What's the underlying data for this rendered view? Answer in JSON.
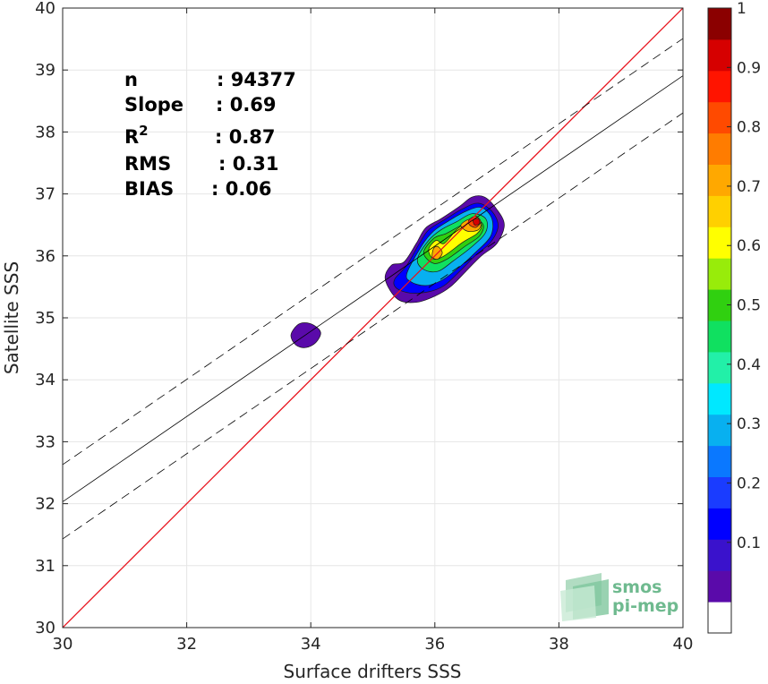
{
  "chart_data": {
    "type": "heatmap",
    "title": "",
    "xlabel": "Surface drifters SSS",
    "ylabel": "Satellite SSS",
    "xlim": [
      30,
      40
    ],
    "ylim": [
      30,
      40
    ],
    "xticks": [
      30,
      32,
      34,
      36,
      38,
      40
    ],
    "yticks": [
      30,
      31,
      32,
      33,
      34,
      35,
      36,
      37,
      38,
      39,
      40
    ],
    "grid": true,
    "colorbar": {
      "ticks": [
        "0.1",
        "0.2",
        "0.3",
        "0.4",
        "0.5",
        "0.6",
        "0.7",
        "0.8",
        "0.9",
        "1"
      ],
      "colors": [
        "#ffffff",
        "#5a0aaa",
        "#3a12cc",
        "#0000ff",
        "#1a3cff",
        "#0a78ff",
        "#08b0f0",
        "#00e8ff",
        "#22f0a8",
        "#10e060",
        "#30d010",
        "#98ec0a",
        "#ffff00",
        "#ffd000",
        "#ffa800",
        "#ff7c00",
        "#ff4a00",
        "#ff1400",
        "#d60000",
        "#8b0000"
      ]
    },
    "stats": [
      {
        "label": "n",
        "value": ": 94377"
      },
      {
        "label": "Slope",
        "value": ": 0.69"
      },
      {
        "label": "R",
        "sup": "2",
        "value": ": 0.87"
      },
      {
        "label": "RMS",
        "value": ": 0.31"
      },
      {
        "label": "BIAS",
        "value": ": 0.06"
      }
    ],
    "identity_line": {
      "color": "#e8141e",
      "slope": 1,
      "intercept": 0
    },
    "fit_line": {
      "slope": 0.6877,
      "intercept": 11.4,
      "band_offsets": [
        0.6,
        -0.6
      ]
    },
    "density_contours": [
      {
        "level": 0.05,
        "points": [
          [
            33.78,
            34.88
          ],
          [
            33.9,
            34.92
          ],
          [
            34.05,
            34.88
          ],
          [
            34.16,
            34.76
          ],
          [
            34.08,
            34.6
          ],
          [
            33.92,
            34.52
          ],
          [
            33.76,
            34.56
          ],
          [
            33.68,
            34.72
          ]
        ]
      },
      {
        "level": 0.05,
        "points": [
          [
            35.2,
            35.62
          ],
          [
            35.3,
            35.85
          ],
          [
            35.5,
            35.9
          ],
          [
            35.7,
            36.2
          ],
          [
            35.85,
            36.45
          ],
          [
            36.1,
            36.6
          ],
          [
            36.4,
            36.8
          ],
          [
            36.6,
            36.95
          ],
          [
            36.8,
            36.95
          ],
          [
            37,
            36.75
          ],
          [
            37.12,
            36.5
          ],
          [
            37.0,
            36.2
          ],
          [
            36.75,
            36.0
          ],
          [
            36.5,
            35.75
          ],
          [
            36.25,
            35.5
          ],
          [
            36.0,
            35.35
          ],
          [
            35.7,
            35.25
          ],
          [
            35.4,
            35.3
          ]
        ]
      },
      {
        "level": 0.15,
        "points": [
          [
            35.35,
            35.62
          ],
          [
            35.55,
            35.85
          ],
          [
            35.75,
            36.2
          ],
          [
            35.9,
            36.42
          ],
          [
            36.15,
            36.58
          ],
          [
            36.45,
            36.76
          ],
          [
            36.7,
            36.85
          ],
          [
            36.92,
            36.72
          ],
          [
            37.02,
            36.48
          ],
          [
            36.9,
            36.22
          ],
          [
            36.65,
            36.0
          ],
          [
            36.4,
            35.75
          ],
          [
            36.15,
            35.52
          ],
          [
            35.9,
            35.42
          ],
          [
            35.6,
            35.4
          ],
          [
            35.38,
            35.48
          ]
        ]
      },
      {
        "level": 0.3,
        "points": [
          [
            35.55,
            35.72
          ],
          [
            35.8,
            36.18
          ],
          [
            35.98,
            36.4
          ],
          [
            36.2,
            36.55
          ],
          [
            36.5,
            36.72
          ],
          [
            36.75,
            36.78
          ],
          [
            36.92,
            36.6
          ],
          [
            36.9,
            36.32
          ],
          [
            36.65,
            36.05
          ],
          [
            36.35,
            35.78
          ],
          [
            36.1,
            35.6
          ],
          [
            35.85,
            35.52
          ],
          [
            35.62,
            35.58
          ]
        ]
      },
      {
        "level": 0.45,
        "points": [
          [
            35.72,
            35.95
          ],
          [
            35.9,
            36.25
          ],
          [
            36.1,
            36.42
          ],
          [
            36.35,
            36.55
          ],
          [
            36.6,
            36.68
          ],
          [
            36.82,
            36.6
          ],
          [
            36.82,
            36.38
          ],
          [
            36.6,
            36.15
          ],
          [
            36.3,
            35.92
          ],
          [
            36.05,
            35.75
          ],
          [
            35.82,
            35.78
          ]
        ]
      },
      {
        "level": 0.55,
        "points": [
          [
            35.82,
            36.05
          ],
          [
            35.98,
            36.28
          ],
          [
            36.18,
            36.36
          ],
          [
            36.4,
            36.48
          ],
          [
            36.62,
            36.6
          ],
          [
            36.78,
            36.5
          ],
          [
            36.72,
            36.32
          ],
          [
            36.48,
            36.15
          ],
          [
            36.2,
            35.95
          ],
          [
            35.98,
            35.88
          ]
        ]
      },
      {
        "level": 0.65,
        "points": [
          [
            35.9,
            36.1
          ],
          [
            36.02,
            36.25
          ],
          [
            36.15,
            36.2
          ],
          [
            36.35,
            36.42
          ],
          [
            36.58,
            36.58
          ],
          [
            36.75,
            36.5
          ],
          [
            36.68,
            36.36
          ],
          [
            36.45,
            36.22
          ],
          [
            36.15,
            36.0
          ],
          [
            35.98,
            35.95
          ]
        ]
      },
      {
        "level": 0.75,
        "points": [
          [
            35.98,
            36.12
          ],
          [
            36.05,
            36.15
          ],
          [
            36.12,
            36.05
          ],
          [
            36.05,
            35.95
          ],
          [
            35.96,
            35.98
          ]
        ]
      },
      {
        "level": 0.75,
        "points": [
          [
            36.42,
            36.5
          ],
          [
            36.58,
            36.6
          ],
          [
            36.74,
            36.55
          ],
          [
            36.7,
            36.42
          ],
          [
            36.52,
            36.4
          ]
        ]
      },
      {
        "level": 0.85,
        "points": [
          [
            36.55,
            36.58
          ],
          [
            36.66,
            36.64
          ],
          [
            36.74,
            36.55
          ],
          [
            36.66,
            36.46
          ],
          [
            36.56,
            36.5
          ]
        ]
      },
      {
        "level": 0.95,
        "points": [
          [
            36.62,
            36.58
          ],
          [
            36.7,
            36.6
          ],
          [
            36.72,
            36.52
          ],
          [
            36.64,
            36.5
          ]
        ]
      }
    ]
  },
  "logo": {
    "line1": "smos",
    "line2": "pi-mep"
  }
}
